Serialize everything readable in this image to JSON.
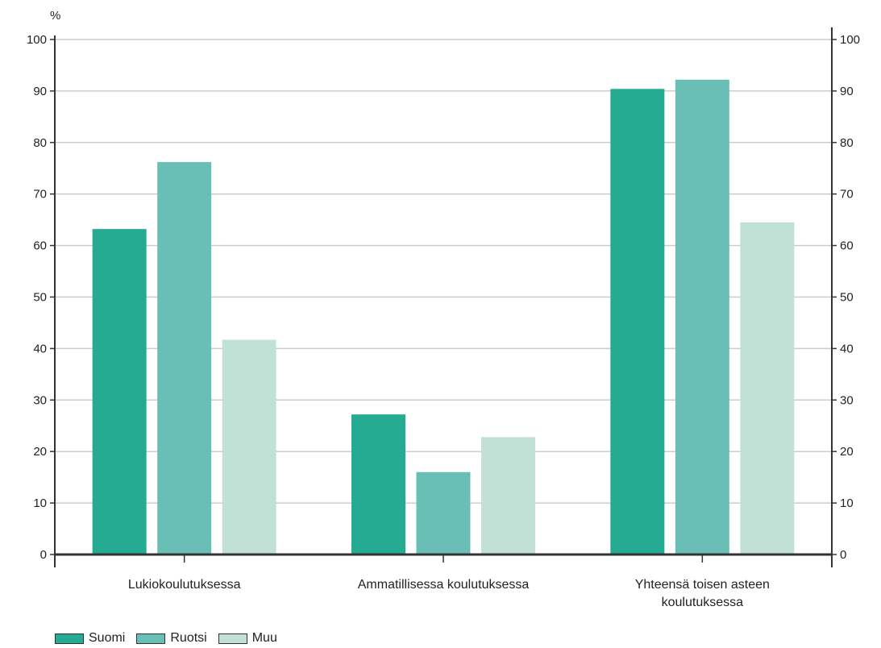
{
  "chart_data": {
    "type": "bar",
    "unit_label": "%",
    "categories": [
      "Lukiokoulutuksessa",
      "Ammatillisessa koulutuksessa",
      "Yhteensä toisen asteen koulutuksessa"
    ],
    "category_lines": [
      [
        "Lukiokoulutuksessa"
      ],
      [
        "Ammatillisessa koulutuksessa"
      ],
      [
        "Yhteensä toisen asteen",
        "koulutuksessa"
      ]
    ],
    "series": [
      {
        "name": "Suomi",
        "color": "#24ab91",
        "values": [
          63.2,
          27.2,
          90.4
        ]
      },
      {
        "name": "Ruotsi",
        "color": "#69bfb6",
        "values": [
          76.2,
          16.0,
          92.2
        ]
      },
      {
        "name": "Muu",
        "color": "#c2e1d6",
        "values": [
          41.7,
          22.8,
          64.5
        ]
      }
    ],
    "ylim": [
      0,
      100
    ],
    "yticks": [
      0,
      10,
      20,
      30,
      40,
      50,
      60,
      70,
      80,
      90,
      100
    ],
    "ytick_labels": [
      "0",
      "10",
      "20",
      "30",
      "40",
      "50",
      "60",
      "70",
      "80",
      "90",
      "100"
    ],
    "right_axis": true,
    "grid": true,
    "legend_position": "bottom-left"
  }
}
